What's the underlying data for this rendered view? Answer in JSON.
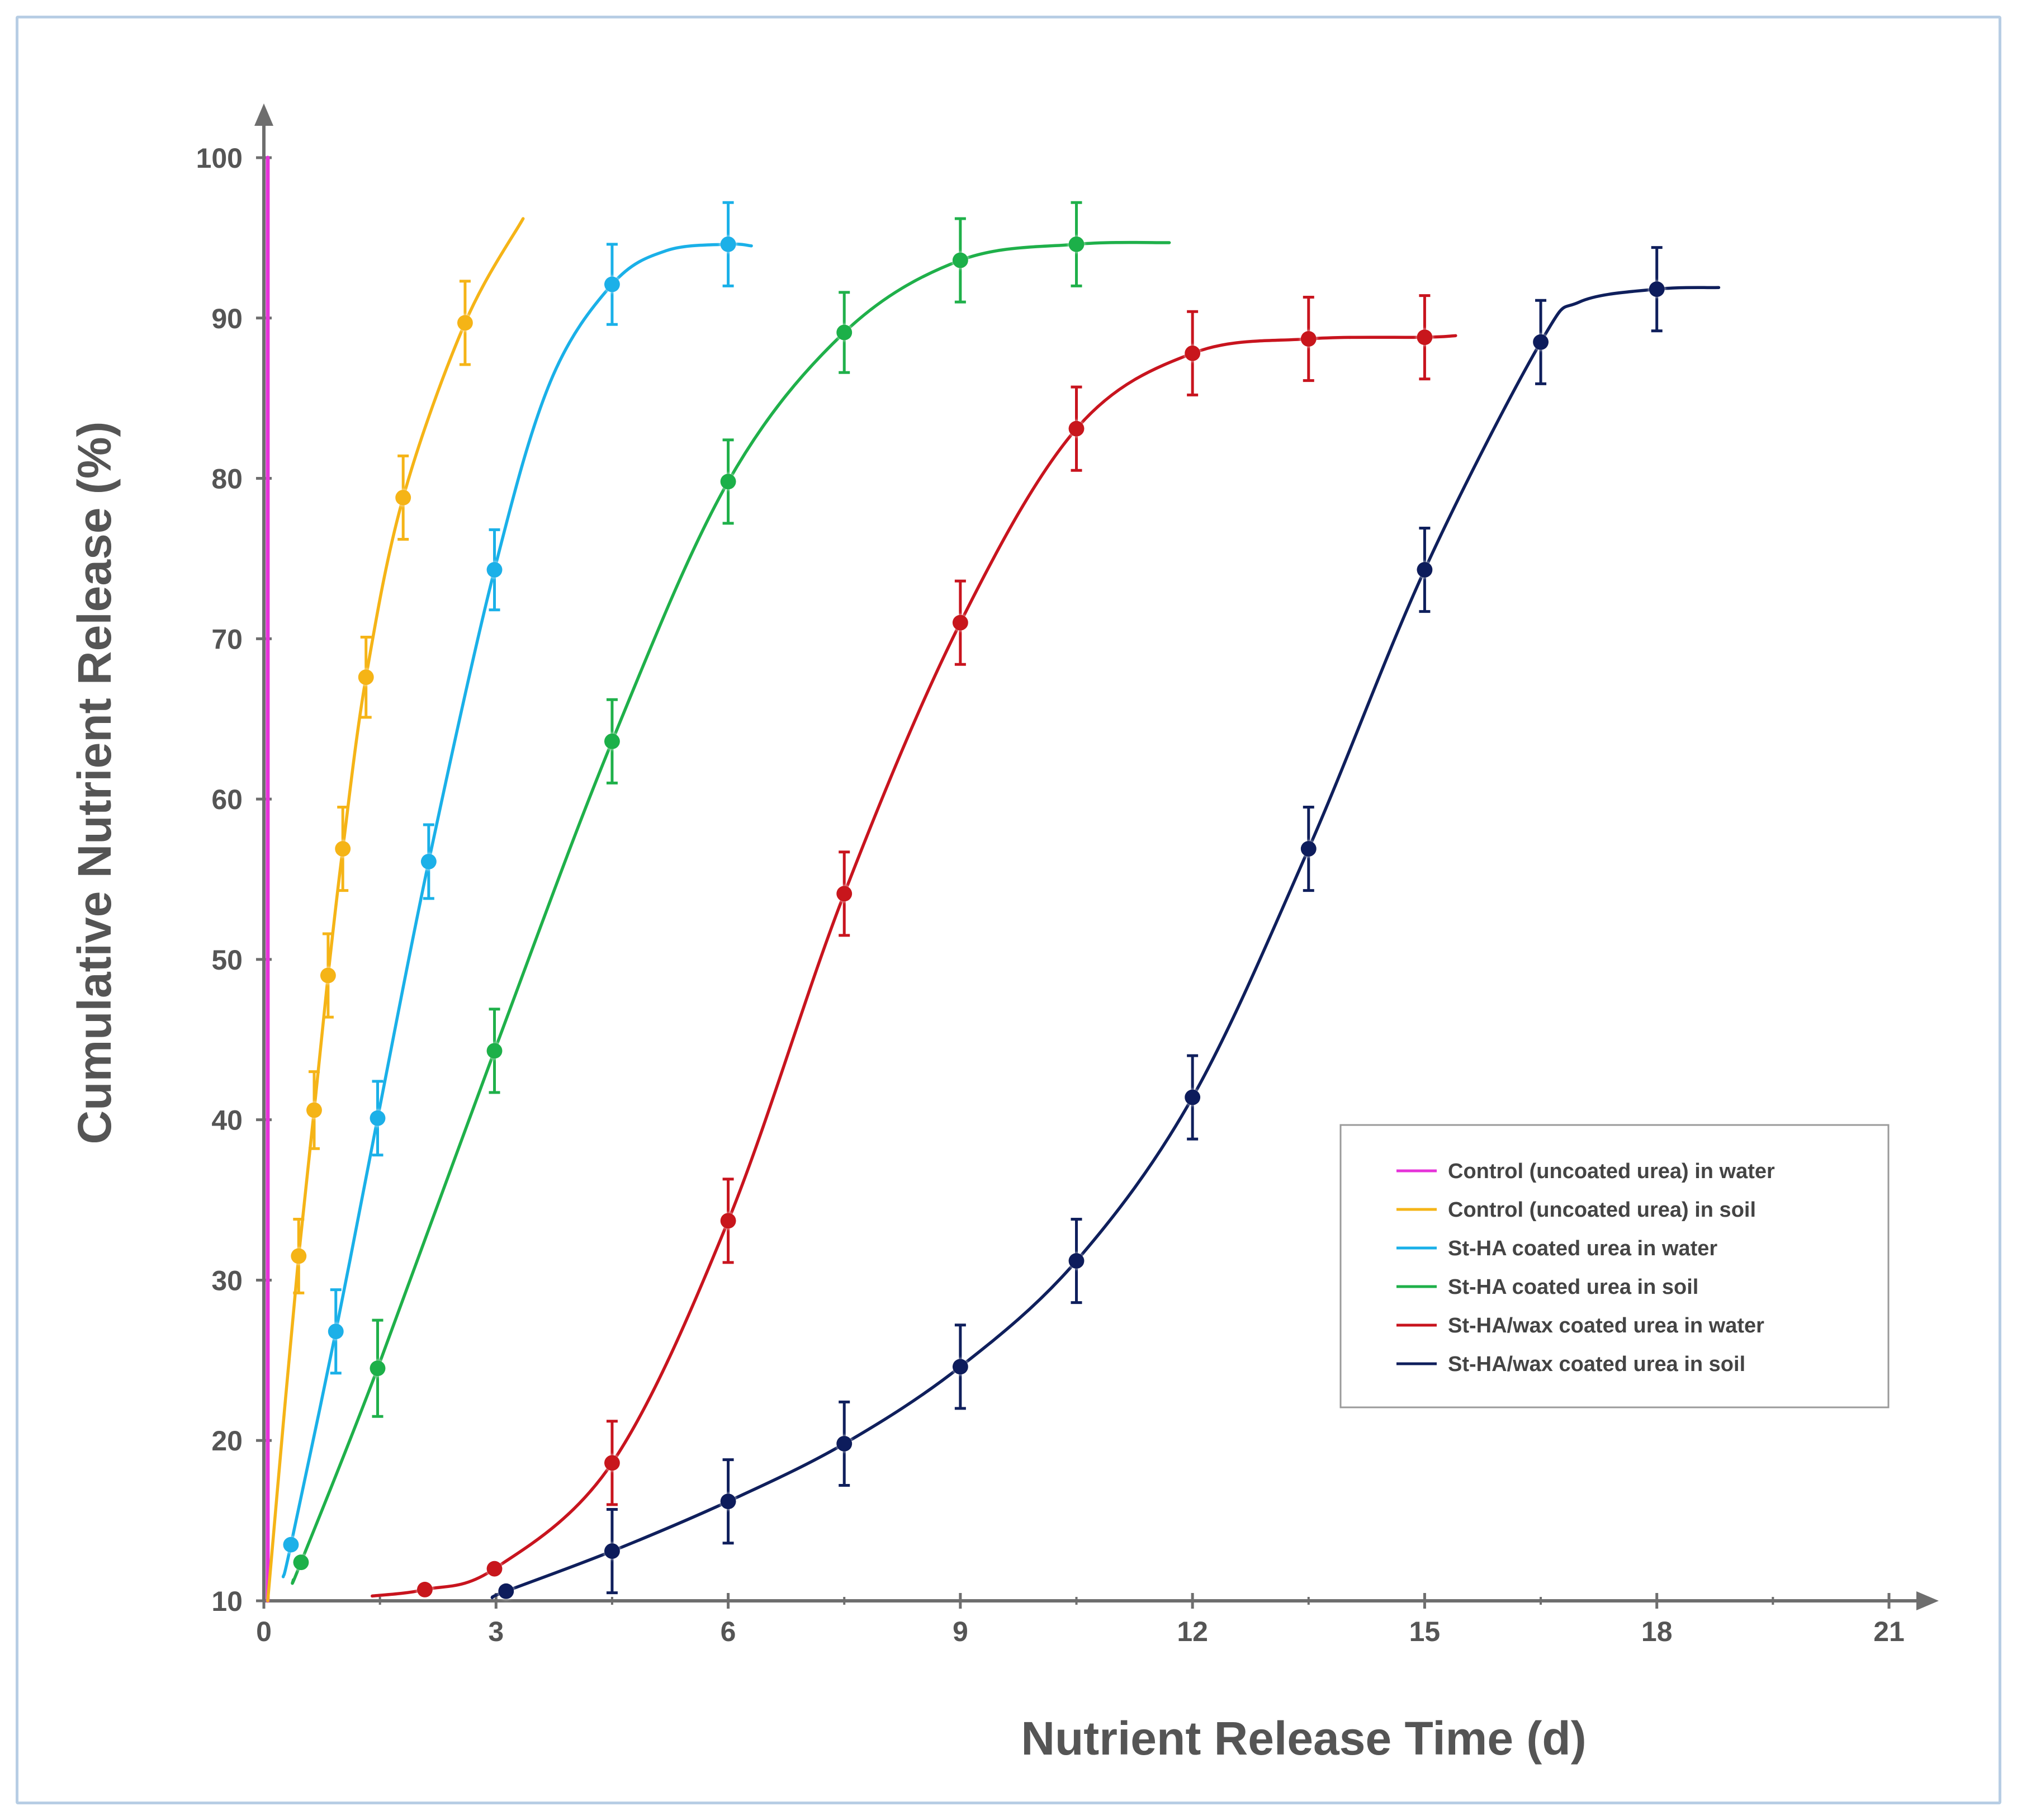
{
  "chart_data": {
    "type": "line",
    "xlabel": "Nutrient Release Time (d)",
    "ylabel": "Cumulative Nutrient Release (%)",
    "xlim": [
      0,
      21
    ],
    "ylim": [
      10,
      100
    ],
    "x_ticks": [
      0,
      3,
      6,
      9,
      12,
      15,
      18,
      21
    ],
    "y_ticks": [
      10,
      20,
      30,
      40,
      50,
      60,
      70,
      80,
      90,
      100
    ],
    "grid": false,
    "legend_position": "center-right",
    "series": [
      {
        "name": "Control (uncoated urea) in water",
        "color": "#e633d9",
        "points": [],
        "curve": [
          [
            0.05,
            10
          ],
          [
            0.05,
            100
          ]
        ]
      },
      {
        "name": "Control (uncoated urea) in soil",
        "color": "#f5b417",
        "points": [
          {
            "x": 0.45,
            "y": 31.5,
            "err": 2.3
          },
          {
            "x": 0.65,
            "y": 40.6,
            "err": 2.4
          },
          {
            "x": 0.83,
            "y": 49.0,
            "err": 2.6
          },
          {
            "x": 1.02,
            "y": 56.9,
            "err": 2.6
          },
          {
            "x": 1.32,
            "y": 67.6,
            "err": 2.5
          },
          {
            "x": 1.8,
            "y": 78.8,
            "err": 2.6
          },
          {
            "x": 2.6,
            "y": 89.7,
            "err": 2.6
          }
        ],
        "curve": [
          [
            0.05,
            10
          ],
          [
            0.25,
            21
          ],
          [
            0.45,
            31.5
          ],
          [
            0.65,
            40.6
          ],
          [
            0.83,
            49.0
          ],
          [
            1.02,
            56.9
          ],
          [
            1.32,
            67.6
          ],
          [
            1.8,
            78.8
          ],
          [
            2.6,
            89.7
          ],
          [
            3.35,
            96.2
          ]
        ]
      },
      {
        "name": "St-HA coated urea in water",
        "color": "#1ab0e8",
        "points": [
          {
            "x": 0.35,
            "y": 13.5,
            "err": 0
          },
          {
            "x": 0.93,
            "y": 26.8,
            "err": 2.6
          },
          {
            "x": 1.47,
            "y": 40.1,
            "err": 2.3
          },
          {
            "x": 2.13,
            "y": 56.1,
            "err": 2.3
          },
          {
            "x": 2.98,
            "y": 74.3,
            "err": 2.5
          },
          {
            "x": 4.5,
            "y": 92.1,
            "err": 2.5
          },
          {
            "x": 6.0,
            "y": 94.6,
            "err": 2.6
          }
        ],
        "curve": [
          [
            0.25,
            11.5
          ],
          [
            0.35,
            13.5
          ],
          [
            0.93,
            26.8
          ],
          [
            1.47,
            40.1
          ],
          [
            2.13,
            56.1
          ],
          [
            2.98,
            74.3
          ],
          [
            3.7,
            86.0
          ],
          [
            4.5,
            92.1
          ],
          [
            5.2,
            94.2
          ],
          [
            6.0,
            94.6
          ],
          [
            6.3,
            94.5
          ]
        ]
      },
      {
        "name": "St-HA coated urea in soil",
        "color": "#1fb04a",
        "points": [
          {
            "x": 0.48,
            "y": 12.4,
            "err": 0
          },
          {
            "x": 1.47,
            "y": 24.5,
            "err": 3.0
          },
          {
            "x": 2.98,
            "y": 44.3,
            "err": 2.6
          },
          {
            "x": 4.5,
            "y": 63.6,
            "err": 2.6
          },
          {
            "x": 6.0,
            "y": 79.8,
            "err": 2.6
          },
          {
            "x": 7.5,
            "y": 89.1,
            "err": 2.5
          },
          {
            "x": 9.0,
            "y": 93.6,
            "err": 2.6
          },
          {
            "x": 10.5,
            "y": 94.6,
            "err": 2.6
          }
        ],
        "curve": [
          [
            0.38,
            11.3
          ],
          [
            0.48,
            12.4
          ],
          [
            1.47,
            24.5
          ],
          [
            2.98,
            44.3
          ],
          [
            4.5,
            63.6
          ],
          [
            6.0,
            79.8
          ],
          [
            7.5,
            89.1
          ],
          [
            9.0,
            93.6
          ],
          [
            10.5,
            94.6
          ],
          [
            11.7,
            94.7
          ]
        ]
      },
      {
        "name": "St-HA/wax coated urea in water",
        "color": "#c8141e",
        "points": [
          {
            "x": 2.08,
            "y": 10.7,
            "err": 0
          },
          {
            "x": 2.98,
            "y": 12.0,
            "err": 0
          },
          {
            "x": 4.5,
            "y": 18.6,
            "err": 2.6
          },
          {
            "x": 6.0,
            "y": 33.7,
            "err": 2.6
          },
          {
            "x": 7.5,
            "y": 54.1,
            "err": 2.6
          },
          {
            "x": 9.0,
            "y": 71.0,
            "err": 2.6
          },
          {
            "x": 10.5,
            "y": 83.1,
            "err": 2.6
          },
          {
            "x": 12.0,
            "y": 87.8,
            "err": 2.6
          },
          {
            "x": 13.5,
            "y": 88.7,
            "err": 2.6
          },
          {
            "x": 15.0,
            "y": 88.8,
            "err": 2.6
          }
        ],
        "curve": [
          [
            1.4,
            10.3
          ],
          [
            2.08,
            10.7
          ],
          [
            2.98,
            12.0
          ],
          [
            4.5,
            18.6
          ],
          [
            6.0,
            33.7
          ],
          [
            7.5,
            54.1
          ],
          [
            9.0,
            71.0
          ],
          [
            10.5,
            83.1
          ],
          [
            12.0,
            87.8
          ],
          [
            13.5,
            88.7
          ],
          [
            15.0,
            88.8
          ],
          [
            15.4,
            88.9
          ]
        ]
      },
      {
        "name": "St-HA/wax coated urea in soil",
        "color": "#0f1f5c",
        "points": [
          {
            "x": 3.13,
            "y": 10.6,
            "err": 0
          },
          {
            "x": 4.5,
            "y": 13.1,
            "err": 2.6
          },
          {
            "x": 6.0,
            "y": 16.2,
            "err": 2.6
          },
          {
            "x": 7.5,
            "y": 19.8,
            "err": 2.6
          },
          {
            "x": 9.0,
            "y": 24.6,
            "err": 2.6
          },
          {
            "x": 10.5,
            "y": 31.2,
            "err": 2.6
          },
          {
            "x": 12.0,
            "y": 41.4,
            "err": 2.6
          },
          {
            "x": 13.5,
            "y": 56.9,
            "err": 2.6
          },
          {
            "x": 15.0,
            "y": 74.3,
            "err": 2.6
          },
          {
            "x": 16.5,
            "y": 88.5,
            "err": 2.6
          },
          {
            "x": 18.0,
            "y": 91.8,
            "err": 2.6
          }
        ],
        "curve": [
          [
            2.95,
            10.2
          ],
          [
            3.13,
            10.6
          ],
          [
            4.5,
            13.1
          ],
          [
            6.0,
            16.2
          ],
          [
            7.5,
            19.8
          ],
          [
            9.0,
            24.6
          ],
          [
            10.5,
            31.2
          ],
          [
            12.0,
            41.4
          ],
          [
            13.5,
            56.9
          ],
          [
            15.0,
            74.3
          ],
          [
            16.5,
            88.5
          ],
          [
            17.0,
            91.0
          ],
          [
            18.0,
            91.8
          ],
          [
            18.8,
            91.9
          ]
        ]
      }
    ]
  }
}
